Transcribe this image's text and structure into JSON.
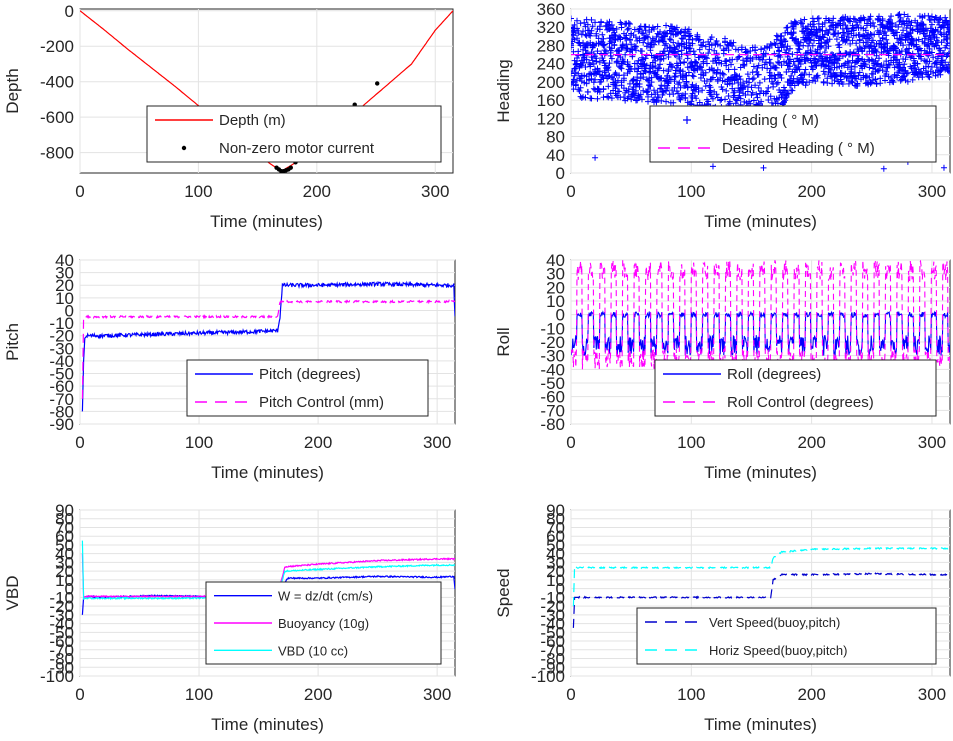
{
  "colors": {
    "red": "#ff0000",
    "blue": "#0000ff",
    "magenta": "#ff00ff",
    "cyan": "#00ffff",
    "black": "#000000",
    "darkblue": "#0000cc"
  },
  "chart_data": [
    {
      "type": "line",
      "xlabel": "Time (minutes)",
      "ylabel": "Depth",
      "xlim": [
        0,
        315
      ],
      "ylim": [
        -915,
        10
      ],
      "xticks": [
        0,
        100,
        200,
        300
      ],
      "yticks": [
        0,
        -200,
        -400,
        -600,
        -800
      ],
      "grid": true,
      "legend_position": "lower-right",
      "series": [
        {
          "name": "Depth (m)",
          "style": "solid",
          "color": "red",
          "x": [
            0,
            20,
            40,
            60,
            80,
            100,
            120,
            140,
            160,
            170,
            180,
            200,
            220,
            240,
            260,
            280,
            300,
            315
          ],
          "y": [
            0,
            -105,
            -215,
            -320,
            -425,
            -535,
            -640,
            -750,
            -860,
            -905,
            -865,
            -755,
            -645,
            -530,
            -415,
            -300,
            -110,
            0
          ]
        },
        {
          "name": "Non-zero motor current",
          "style": "dots",
          "color": "black",
          "x": [
            166,
            168,
            170,
            172,
            174,
            176,
            178,
            182,
            190,
            208,
            232,
            251
          ],
          "y": [
            -885,
            -895,
            -905,
            -905,
            -900,
            -895,
            -885,
            -855,
            -815,
            -685,
            -530,
            -410
          ]
        }
      ]
    },
    {
      "type": "scatter",
      "xlabel": "Time (minutes)",
      "ylabel": "Heading",
      "xlim": [
        0,
        315
      ],
      "ylim": [
        0,
        360
      ],
      "xticks": [
        0,
        100,
        200,
        300
      ],
      "yticks": [
        0,
        40,
        80,
        120,
        160,
        200,
        240,
        280,
        320,
        360
      ],
      "grid": true,
      "legend_position": "lower-right",
      "series": [
        {
          "name": "Heading (  ° M)",
          "style": "plus",
          "color": "blue",
          "bands": [
            [
              0,
              165,
              340
            ],
            [
              100,
              150,
              320
            ],
            [
              120,
              70,
              300
            ],
            [
              160,
              40,
              280
            ],
            [
              180,
              170,
              330
            ],
            [
              200,
              200,
              340
            ],
            [
              240,
              190,
              345
            ],
            [
              280,
              200,
              350
            ],
            [
              315,
              220,
              340
            ]
          ]
        },
        {
          "name": "Desired Heading (  ° M)",
          "style": "dashed",
          "color": "magenta",
          "x": [
            0,
            315
          ],
          "y": [
            260,
            260
          ]
        }
      ]
    },
    {
      "type": "line",
      "xlabel": "Time (minutes)",
      "ylabel": "Pitch",
      "xlim": [
        0,
        315
      ],
      "ylim": [
        -90,
        40
      ],
      "xticks": [
        0,
        100,
        200,
        300
      ],
      "yticks": [
        40,
        30,
        20,
        10,
        0,
        -10,
        -20,
        -30,
        -40,
        -50,
        -60,
        -70,
        -80,
        -90
      ],
      "grid": true,
      "legend_position": "lower-right",
      "series": [
        {
          "name": "Pitch (degrees)",
          "style": "solid",
          "color": "blue",
          "x": [
            2,
            3,
            4,
            6,
            20,
            60,
            100,
            140,
            166,
            168,
            170,
            200,
            250,
            300,
            314,
            315
          ],
          "y": [
            -80,
            -40,
            -22,
            -20,
            -20,
            -19,
            -18,
            -17,
            -16,
            -5,
            20,
            20,
            21,
            20,
            20,
            -5
          ]
        },
        {
          "name": "Pitch Control (mm)",
          "style": "dashed",
          "color": "magenta",
          "x": [
            2,
            3,
            10,
            60,
            100,
            166,
            168,
            200,
            250,
            315
          ],
          "y": [
            -70,
            -5,
            -5,
            -5,
            -5,
            -5,
            7,
            7,
            7,
            7
          ]
        }
      ]
    },
    {
      "type": "line",
      "xlabel": "Time (minutes)",
      "ylabel": "Roll",
      "xlim": [
        0,
        315
      ],
      "ylim": [
        -80,
        40
      ],
      "xticks": [
        0,
        100,
        200,
        300
      ],
      "yticks": [
        40,
        30,
        20,
        10,
        0,
        -10,
        -20,
        -30,
        -40,
        -50,
        -60,
        -70,
        -80
      ],
      "grid": true,
      "legend_position": "lower-right",
      "series": [
        {
          "name": "Roll (degrees)",
          "style": "solid",
          "color": "blue",
          "range": [
            -30,
            15
          ]
        },
        {
          "name": "Roll Control (degrees)",
          "style": "dashed",
          "color": "magenta",
          "range": [
            -40,
            40
          ]
        }
      ]
    },
    {
      "type": "line",
      "xlabel": "Time (minutes)",
      "ylabel": "VBD",
      "xlim": [
        0,
        315
      ],
      "ylim": [
        -100,
        90
      ],
      "xticks": [
        0,
        100,
        200,
        300
      ],
      "yticks": [
        90,
        80,
        70,
        60,
        50,
        40,
        30,
        20,
        10,
        0,
        -10,
        -20,
        -30,
        -40,
        -50,
        -60,
        -70,
        -80,
        -90,
        -100
      ],
      "ytick_labels": [
        "90",
        "80",
        "70",
        "60",
        "50",
        "40",
        "30",
        "20",
        "10",
        "0",
        "-10",
        "-20",
        "-30",
        "-40",
        "-50",
        "-60",
        "-70",
        "-80",
        "-90",
        "-100"
      ],
      "grid": true,
      "legend_position": "lower-right",
      "series": [
        {
          "name": "W = dz/dt (cm/s)",
          "style": "solid",
          "color": "blue",
          "x": [
            2,
            3,
            5,
            20,
            60,
            100,
            140,
            166,
            170,
            175,
            200,
            250,
            300,
            314,
            315
          ],
          "y": [
            -30,
            -10,
            -9,
            -10,
            -8,
            -9,
            -8,
            -8,
            5,
            12,
            12,
            14,
            13,
            14,
            0
          ]
        },
        {
          "name": "Buoyancy (10g)",
          "style": "solid",
          "color": "magenta",
          "x": [
            2,
            3,
            5,
            60,
            100,
            166,
            172,
            200,
            250,
            300,
            315
          ],
          "y": [
            40,
            -10,
            -9,
            -9,
            -9,
            -8,
            25,
            28,
            32,
            34,
            34
          ]
        },
        {
          "name": "VBD (10 cc)",
          "style": "solid",
          "color": "cyan",
          "x": [
            2,
            3,
            5,
            60,
            100,
            166,
            172,
            200,
            250,
            300,
            315
          ],
          "y": [
            55,
            -12,
            -11,
            -11,
            -11,
            -10,
            20,
            22,
            25,
            27,
            27
          ]
        }
      ]
    },
    {
      "type": "line",
      "xlabel": "Time (minutes)",
      "ylabel": "Speed",
      "xlim": [
        0,
        315
      ],
      "ylim": [
        -100,
        90
      ],
      "xticks": [
        0,
        100,
        200,
        300
      ],
      "yticks": [
        90,
        80,
        70,
        60,
        50,
        40,
        30,
        20,
        10,
        0,
        -10,
        -20,
        -30,
        -40,
        -50,
        -60,
        -70,
        -80,
        -90,
        -100
      ],
      "ytick_labels": [
        "90",
        "80",
        "70",
        "60",
        "50",
        "40",
        "30",
        "20",
        "10",
        "0",
        "-10",
        "-20",
        "-30",
        "-40",
        "-50",
        "-60",
        "-70",
        "-80",
        "-90",
        "-100"
      ],
      "grid": true,
      "legend_position": "lower-right",
      "series": [
        {
          "name": "Vert Speed(buoy,pitch)",
          "style": "dashed",
          "color": "darkblue",
          "x": [
            2,
            3,
            5,
            60,
            100,
            166,
            168,
            175,
            200,
            250,
            300,
            315
          ],
          "y": [
            -45,
            -10,
            -10,
            -10,
            -10,
            -10,
            10,
            16,
            16,
            17,
            16,
            16
          ]
        },
        {
          "name": "Horiz Speed(buoy,pitch)",
          "style": "dashed",
          "color": "cyan",
          "x": [
            2,
            3,
            5,
            60,
            100,
            166,
            168,
            175,
            200,
            250,
            300,
            315
          ],
          "y": [
            -20,
            26,
            24,
            24,
            24,
            24,
            35,
            42,
            45,
            46,
            46,
            46
          ]
        }
      ]
    }
  ]
}
